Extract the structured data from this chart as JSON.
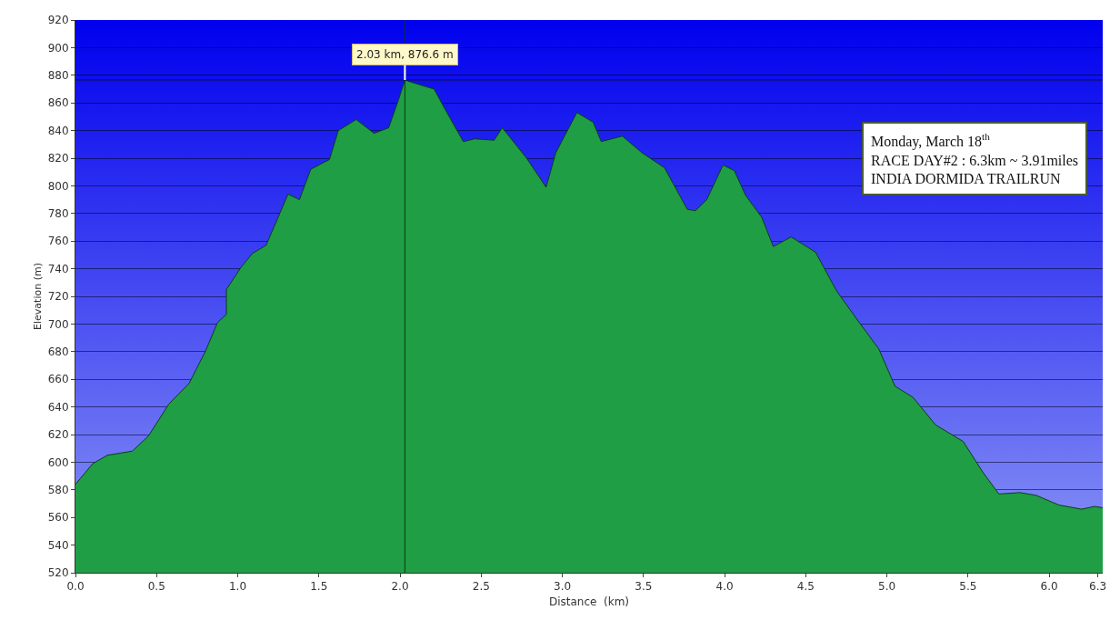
{
  "chart_data": {
    "type": "area",
    "xlabel": "Distance  (km)",
    "ylabel": "Elevation (m)",
    "x": [
      0,
      0.107,
      0.196,
      0.35,
      0.45,
      0.575,
      0.7,
      0.8,
      0.875,
      0.93,
      0.93,
      1.02,
      1.09,
      1.175,
      1.31,
      1.38,
      1.45,
      1.565,
      1.62,
      1.73,
      1.84,
      1.93,
      1.99,
      2.03,
      2.07,
      2.21,
      2.27,
      2.39,
      2.46,
      2.58,
      2.63,
      2.78,
      2.9,
      2.96,
      3.09,
      3.19,
      3.24,
      3.37,
      3.49,
      3.63,
      3.77,
      3.82,
      3.89,
      3.99,
      4.06,
      4.13,
      4.23,
      4.3,
      4.41,
      4.56,
      4.69,
      4.83,
      4.95,
      5.05,
      5.16,
      5.3,
      5.47,
      5.59,
      5.69,
      5.82,
      5.92,
      6.06,
      6.2,
      6.28,
      6.33
    ],
    "values": [
      584,
      599,
      605,
      608,
      619,
      642,
      657,
      680,
      701,
      707,
      725,
      741,
      751,
      757,
      794,
      790,
      812,
      819,
      840,
      848,
      838,
      842,
      862,
      876.6,
      875,
      870,
      857,
      832,
      834,
      833,
      842,
      820,
      799,
      824,
      853,
      846,
      832,
      836,
      824,
      813,
      783,
      782,
      790,
      815,
      811,
      793,
      777,
      756,
      763,
      752,
      724,
      701,
      682,
      655,
      647,
      627,
      615,
      593,
      577,
      578,
      576,
      569,
      566,
      568,
      567
    ],
    "color": "#1f9e45",
    "xlim": [
      0,
      6.33
    ],
    "xticks": [
      {
        "value": 0,
        "label": "0.0"
      },
      0.5,
      {
        "value": 1,
        "label": "1.0"
      },
      1.5,
      {
        "value": 2,
        "label": "2.0"
      },
      2.5,
      {
        "value": 3,
        "label": "3.0"
      },
      3.5,
      {
        "value": 4,
        "label": "4.0"
      },
      4.5,
      {
        "value": 5,
        "label": "5.0"
      },
      5.5,
      {
        "value": 6,
        "label": "6.0"
      },
      6.3
    ],
    "ylim": [
      520,
      920
    ],
    "yticks": [
      520,
      540,
      560,
      580,
      600,
      620,
      640,
      660,
      680,
      700,
      720,
      740,
      760,
      780,
      800,
      820,
      840,
      860,
      880,
      900,
      920
    ],
    "grid": "y",
    "ref_lines": [
      {
        "axis": "x",
        "value": 2.03,
        "color": "#0a3a14"
      },
      {
        "axis": "y",
        "value": 876.6,
        "color": "#101040"
      }
    ],
    "annotations": [
      {
        "text": "2.03 km, 876.6 m",
        "x": 2.03,
        "y": 876.6
      },
      "Monday, March 18$^{th}$\nRACE DAY#2 : 6.3km ~ 3.91miles\nINDIA DORMIDA TRAILRUN"
    ]
  }
}
